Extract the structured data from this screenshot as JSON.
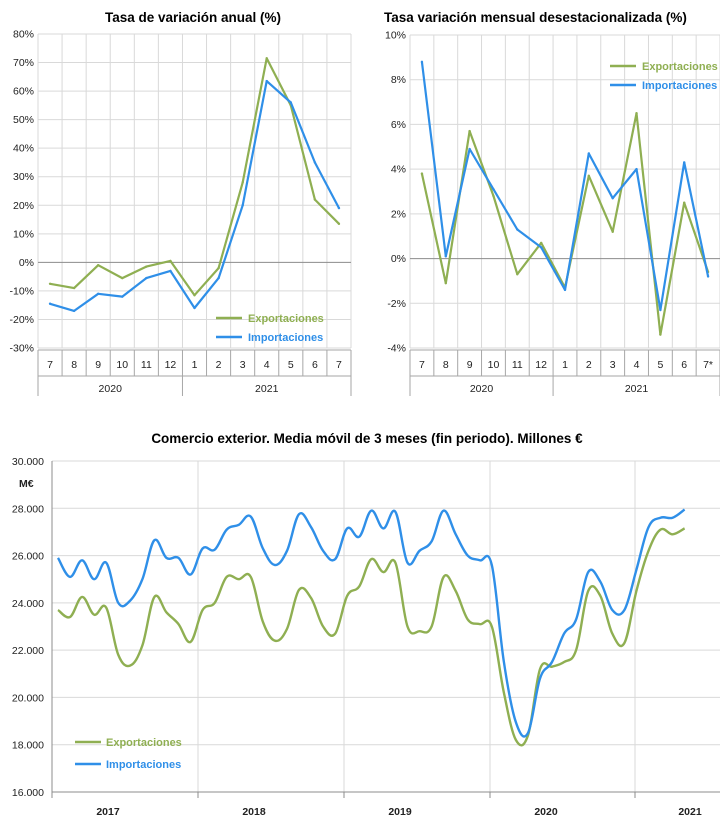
{
  "colors": {
    "exportaciones": "#8faf52",
    "importaciones": "#2f8fe8"
  },
  "chart_data": [
    {
      "type": "line",
      "title": "Tasa de variación anual (%)",
      "categories": [
        "7",
        "8",
        "9",
        "10",
        "11",
        "12",
        "1",
        "2",
        "3",
        "4",
        "5",
        "6",
        "7"
      ],
      "years": [
        {
          "label": "2020",
          "from": 0,
          "to": 5
        },
        {
          "label": "2021",
          "from": 6,
          "to": 12
        }
      ],
      "ylim": [
        -30,
        80
      ],
      "yticks": [
        -30,
        -20,
        -10,
        0,
        10,
        20,
        30,
        40,
        50,
        60,
        70,
        80
      ],
      "ytick_labels": [
        "-30%",
        "-20%",
        "-10%",
        "0%",
        "10%",
        "20%",
        "30%",
        "40%",
        "50%",
        "60%",
        "70%",
        "80%"
      ],
      "legend": "bottom-right",
      "series": [
        {
          "name": "Exportaciones",
          "color_key": "exportaciones",
          "values": [
            -7.5,
            -9,
            -1,
            -5.5,
            -1.5,
            0.5,
            -11.5,
            -2,
            28,
            71.5,
            55,
            22,
            13.5
          ]
        },
        {
          "name": "Importaciones",
          "color_key": "importaciones",
          "values": [
            -14.5,
            -17,
            -11,
            -12,
            -5.5,
            -3,
            -16,
            -5.5,
            20,
            63.5,
            56,
            35,
            19
          ]
        }
      ]
    },
    {
      "type": "line",
      "title": "Tasa variación mensual desestacionalizada (%)",
      "categories": [
        "7",
        "8",
        "9",
        "10",
        "11",
        "12",
        "1",
        "2",
        "3",
        "4",
        "5",
        "6",
        "7*"
      ],
      "years": [
        {
          "label": "2020",
          "from": 0,
          "to": 5
        },
        {
          "label": "2021",
          "from": 6,
          "to": 12
        }
      ],
      "ylim": [
        -4,
        10
      ],
      "yticks": [
        -4,
        -2,
        0,
        2,
        4,
        6,
        8,
        10
      ],
      "ytick_labels": [
        "-4%",
        "-2%",
        "0%",
        "2%",
        "4%",
        "6%",
        "8%",
        "10%"
      ],
      "legend": "top-right",
      "series": [
        {
          "name": "Exportaciones",
          "color_key": "exportaciones",
          "values": [
            3.8,
            -1.1,
            5.7,
            2.8,
            -0.7,
            0.7,
            -1.3,
            3.7,
            1.2,
            6.5,
            -3.4,
            2.5,
            -0.6
          ]
        },
        {
          "name": "Importaciones",
          "color_key": "importaciones",
          "values": [
            8.8,
            0.1,
            4.9,
            3.1,
            1.3,
            0.5,
            -1.4,
            4.7,
            2.7,
            4.0,
            -2.3,
            4.3,
            -0.8
          ]
        }
      ]
    },
    {
      "type": "line",
      "title": "Comercio exterior. Media móvil de 3 meses (fin periodo). Millones €",
      "ylabel": "M€",
      "ylim": [
        16000,
        30000
      ],
      "yticks": [
        16000,
        18000,
        20000,
        22000,
        24000,
        26000,
        28000,
        30000
      ],
      "ytick_labels": [
        "16.000",
        "18.000",
        "20.000",
        "22.000",
        "24.000",
        "26.000",
        "28.000",
        "30.000"
      ],
      "years": [
        "2017",
        "2018",
        "2019",
        "2020",
        "2021"
      ],
      "x_start": 0,
      "x_end": 54,
      "legend": "bottom-left",
      "series": [
        {
          "name": "Exportaciones",
          "color_key": "exportaciones",
          "values": [
            23700,
            23400,
            24250,
            23500,
            23800,
            21800,
            21350,
            22200,
            24250,
            23600,
            23100,
            22350,
            23700,
            24000,
            25100,
            25000,
            25100,
            23200,
            22400,
            22900,
            24550,
            24200,
            23000,
            22700,
            24300,
            24700,
            25850,
            25300,
            25700,
            23000,
            22800,
            23000,
            25100,
            24500,
            23300,
            23100,
            23000,
            20200,
            18200,
            18400,
            21200,
            21300,
            21500,
            22000,
            24500,
            24300,
            22700,
            22300,
            24500,
            26200,
            27100,
            26900,
            27150
          ]
        },
        {
          "name": "Importaciones",
          "color_key": "importaciones",
          "values": [
            25900,
            25100,
            25800,
            25000,
            25700,
            24000,
            24100,
            25000,
            26650,
            25900,
            25900,
            25200,
            26300,
            26250,
            27100,
            27300,
            27650,
            26300,
            25600,
            26200,
            27750,
            27200,
            26200,
            25850,
            27150,
            26800,
            27900,
            27150,
            27850,
            25700,
            26200,
            26600,
            27900,
            26900,
            26000,
            25800,
            25600,
            21500,
            18950,
            18500,
            20800,
            21500,
            22700,
            23300,
            25300,
            24900,
            23700,
            23700,
            25400,
            27200,
            27600,
            27600,
            27950
          ]
        }
      ]
    }
  ]
}
